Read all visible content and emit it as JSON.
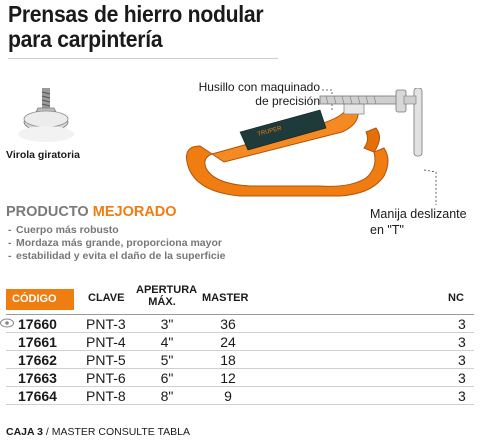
{
  "title": {
    "line1": "Prensas de hierro nodular",
    "line2": "para carpintería"
  },
  "callouts": {
    "husillo_line1": "Husillo con maquinado",
    "husillo_line2": "de precisión",
    "virola": "Virola giratoria",
    "manija_line1": "Manija deslizante",
    "manija_line2": "en \"T\""
  },
  "promo": {
    "head_part1": "PRODUCTO",
    "head_part2": "MEJORADO",
    "bullets": [
      "Cuerpo más robusto",
      "Mordaza más grande, proporciona mayor",
      "estabilidad y evita el daño de la superficie"
    ]
  },
  "table": {
    "headers": {
      "code": "CÓDIGO",
      "clave": "CLAVE",
      "apertura_line1": "APERTURA",
      "apertura_line2": "MÁX.",
      "master": "MASTER",
      "nc": "NC"
    },
    "rows": [
      {
        "code": "17660",
        "clave": "PNT-3",
        "apertura": "3\"",
        "master": "36",
        "nc": "3"
      },
      {
        "code": "17661",
        "clave": "PNT-4",
        "apertura": "4\"",
        "master": "24",
        "nc": "3"
      },
      {
        "code": "17662",
        "clave": "PNT-5",
        "apertura": "5\"",
        "master": "18",
        "nc": "3"
      },
      {
        "code": "17663",
        "clave": "PNT-6",
        "apertura": "6\"",
        "master": "12",
        "nc": "3"
      },
      {
        "code": "17664",
        "clave": "PNT-8",
        "apertura": "8\"",
        "master": "9",
        "nc": "3"
      }
    ]
  },
  "footer": {
    "caja": "CAJA 3",
    "rest": " / MASTER CONSULTE TABLA"
  },
  "product_image": {
    "label_brand": "TRUPER"
  },
  "colors": {
    "accent_orange": "#f07d12",
    "text_dark": "#1a1a1a",
    "text_gray": "#777777"
  }
}
